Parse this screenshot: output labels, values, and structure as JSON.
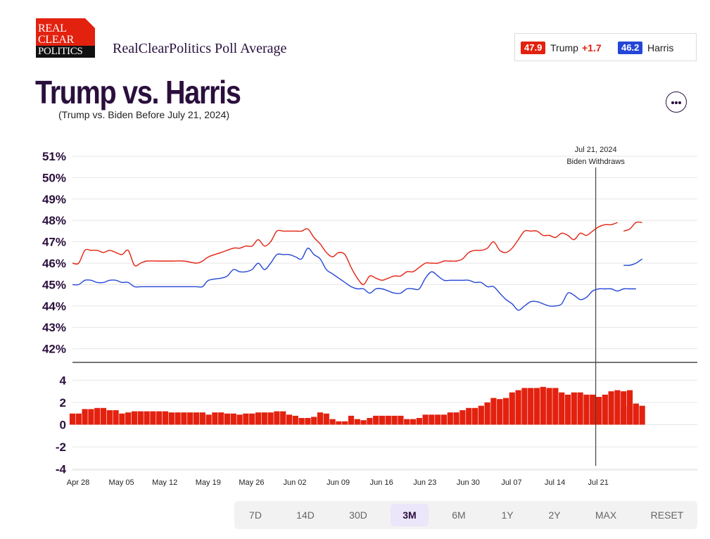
{
  "header": {
    "logo_line1": "REAL",
    "logo_line2": "CLEAR",
    "logo_line3": "POLITICS",
    "brand": "RealClearPolitics Poll Average",
    "trump_value": "47.9",
    "trump_label": "Trump",
    "trump_delta": "+1.7",
    "harris_value": "46.2",
    "harris_label": "Harris",
    "title": "Trump vs. Harris",
    "subtitle": "(Trump vs. Biden Before July 21, 2024)"
  },
  "tabs": [
    {
      "label": "7D",
      "active": false
    },
    {
      "label": "14D",
      "active": false
    },
    {
      "label": "30D",
      "active": false
    },
    {
      "label": "3M",
      "active": true
    },
    {
      "label": "6M",
      "active": false
    },
    {
      "label": "1Y",
      "active": false
    },
    {
      "label": "2Y",
      "active": false
    },
    {
      "label": "MAX",
      "active": false
    },
    {
      "label": "RESET",
      "active": false
    }
  ],
  "colors": {
    "trump": "#e3210f",
    "harris": "#2446d6",
    "spread": "#e3210f",
    "text": "#2a0f3d",
    "grid": "#e6e6e6"
  },
  "chart_data": [
    {
      "type": "line",
      "ylim": [
        41.5,
        51.3
      ],
      "yticks": [
        42,
        43,
        44,
        45,
        46,
        47,
        48,
        49,
        50,
        51
      ],
      "ytick_labels": [
        "42%",
        "43%",
        "44%",
        "45%",
        "46%",
        "47%",
        "48%",
        "49%",
        "50%",
        "51%"
      ],
      "x_start": "2024-04-28",
      "xticks": [
        "Apr 28",
        "May 05",
        "May 12",
        "May 19",
        "May 26",
        "Jun 02",
        "Jun 09",
        "Jun 16",
        "Jun 23",
        "Jun 30",
        "Jul 07",
        "Jul 14",
        "Jul 21"
      ],
      "annotation": {
        "day": 84.5,
        "line1": "Jul 21, 2024",
        "line2": "Biden Withdraws"
      },
      "series": [
        {
          "name": "Trump",
          "color": "#e3210f",
          "points": [
            [
              0,
              46
            ],
            [
              1,
              46
            ],
            [
              2,
              46.6
            ],
            [
              3,
              46.6
            ],
            [
              4,
              46.6
            ],
            [
              5,
              46.5
            ],
            [
              6,
              46.6
            ],
            [
              7,
              46.5
            ],
            [
              8,
              46.4
            ],
            [
              9,
              46.6
            ],
            [
              10,
              45.9
            ],
            [
              11,
              46
            ],
            [
              12,
              46.1
            ],
            [
              14,
              46.1
            ],
            [
              16,
              46.1
            ],
            [
              18,
              46.1
            ],
            [
              20,
              46
            ],
            [
              21,
              46.1
            ],
            [
              22,
              46.3
            ],
            [
              24,
              46.5
            ],
            [
              26,
              46.7
            ],
            [
              27,
              46.7
            ],
            [
              28,
              46.8
            ],
            [
              29,
              46.8
            ],
            [
              30,
              47.1
            ],
            [
              31,
              46.8
            ],
            [
              32,
              47
            ],
            [
              33,
              47.5
            ],
            [
              34,
              47.5
            ],
            [
              35,
              47.5
            ],
            [
              36,
              47.5
            ],
            [
              37,
              47.5
            ],
            [
              38,
              47.6
            ],
            [
              39,
              47.2
            ],
            [
              40,
              46.9
            ],
            [
              41,
              46.5
            ],
            [
              42,
              46.3
            ],
            [
              43,
              46.5
            ],
            [
              44,
              46.4
            ],
            [
              45,
              45.8
            ],
            [
              46,
              45.3
            ],
            [
              47,
              45
            ],
            [
              48,
              45.4
            ],
            [
              49,
              45.3
            ],
            [
              50,
              45.2
            ],
            [
              51,
              45.3
            ],
            [
              52,
              45.4
            ],
            [
              53,
              45.4
            ],
            [
              54,
              45.6
            ],
            [
              55,
              45.6
            ],
            [
              56,
              45.8
            ],
            [
              57,
              46
            ],
            [
              58,
              46
            ],
            [
              59,
              46
            ],
            [
              60,
              46.1
            ],
            [
              61,
              46.1
            ],
            [
              62,
              46.1
            ],
            [
              63,
              46.2
            ],
            [
              64,
              46.5
            ],
            [
              65,
              46.6
            ],
            [
              66,
              46.6
            ],
            [
              67,
              46.7
            ],
            [
              68,
              47
            ],
            [
              69,
              46.6
            ],
            [
              70,
              46.5
            ],
            [
              71,
              46.7
            ],
            [
              72,
              47.1
            ],
            [
              73,
              47.5
            ],
            [
              74,
              47.5
            ],
            [
              75,
              47.5
            ],
            [
              76,
              47.3
            ],
            [
              77,
              47.3
            ],
            [
              78,
              47.2
            ],
            [
              79,
              47.4
            ],
            [
              80,
              47.3
            ],
            [
              81,
              47.1
            ],
            [
              82,
              47.4
            ],
            [
              83,
              47.3
            ],
            [
              84,
              47.5
            ],
            [
              85,
              47.7
            ],
            [
              86,
              47.8
            ],
            [
              87,
              47.8
            ],
            [
              88,
              47.9
            ]
          ]
        },
        {
          "name": "Trump",
          "color": "#e3210f",
          "points": [
            [
              89,
              47.5
            ],
            [
              90,
              47.6
            ],
            [
              91,
              47.9
            ],
            [
              92,
              47.9
            ]
          ]
        },
        {
          "name": "Harris",
          "color": "#2446d6",
          "points": [
            [
              0,
              45
            ],
            [
              1,
              45
            ],
            [
              2,
              45.2
            ],
            [
              3,
              45.2
            ],
            [
              4,
              45.1
            ],
            [
              5,
              45.1
            ],
            [
              6,
              45.2
            ],
            [
              7,
              45.2
            ],
            [
              8,
              45.1
            ],
            [
              9,
              45.1
            ],
            [
              10,
              44.9
            ],
            [
              11,
              44.9
            ],
            [
              12,
              44.9
            ],
            [
              14,
              44.9
            ],
            [
              16,
              44.9
            ],
            [
              18,
              44.9
            ],
            [
              20,
              44.9
            ],
            [
              21,
              44.9
            ],
            [
              22,
              45.2
            ],
            [
              24,
              45.3
            ],
            [
              25,
              45.4
            ],
            [
              26,
              45.7
            ],
            [
              27,
              45.6
            ],
            [
              28,
              45.6
            ],
            [
              29,
              45.7
            ],
            [
              30,
              46
            ],
            [
              31,
              45.7
            ],
            [
              32,
              46
            ],
            [
              33,
              46.4
            ],
            [
              34,
              46.4
            ],
            [
              35,
              46.4
            ],
            [
              36,
              46.3
            ],
            [
              37,
              46.2
            ],
            [
              38,
              46.7
            ],
            [
              39,
              46.4
            ],
            [
              40,
              46.2
            ],
            [
              41,
              45.7
            ],
            [
              42,
              45.5
            ],
            [
              43,
              45.3
            ],
            [
              44,
              45.1
            ],
            [
              45,
              44.9
            ],
            [
              46,
              44.8
            ],
            [
              47,
              44.8
            ],
            [
              48,
              44.6
            ],
            [
              49,
              44.8
            ],
            [
              50,
              44.8
            ],
            [
              51,
              44.7
            ],
            [
              52,
              44.6
            ],
            [
              53,
              44.6
            ],
            [
              54,
              44.8
            ],
            [
              55,
              44.8
            ],
            [
              56,
              44.8
            ],
            [
              57,
              45.3
            ],
            [
              58,
              45.6
            ],
            [
              59,
              45.4
            ],
            [
              60,
              45.2
            ],
            [
              61,
              45.2
            ],
            [
              62,
              45.2
            ],
            [
              63,
              45.2
            ],
            [
              64,
              45.2
            ],
            [
              65,
              45.1
            ],
            [
              66,
              45.1
            ],
            [
              67,
              44.9
            ],
            [
              68,
              44.9
            ],
            [
              69,
              44.6
            ],
            [
              70,
              44.3
            ],
            [
              71,
              44.1
            ],
            [
              72,
              43.8
            ],
            [
              73,
              44
            ],
            [
              74,
              44.2
            ],
            [
              75,
              44.2
            ],
            [
              76,
              44.1
            ],
            [
              77,
              44
            ],
            [
              78,
              44
            ],
            [
              79,
              44.1
            ],
            [
              80,
              44.6
            ],
            [
              81,
              44.5
            ],
            [
              82,
              44.3
            ],
            [
              83,
              44.4
            ],
            [
              84,
              44.7
            ],
            [
              85,
              44.8
            ],
            [
              86,
              44.8
            ],
            [
              87,
              44.8
            ],
            [
              88,
              44.7
            ],
            [
              89,
              44.8
            ],
            [
              90,
              44.8
            ],
            [
              91,
              44.8
            ]
          ]
        },
        {
          "name": "Harris",
          "color": "#2446d6",
          "points": [
            [
              89,
              45.9
            ],
            [
              90,
              45.9
            ],
            [
              91,
              46
            ],
            [
              92,
              46.2
            ]
          ]
        }
      ]
    },
    {
      "type": "bar",
      "ylim": [
        -4.2,
        4.4
      ],
      "yticks": [
        4,
        2,
        0,
        -2,
        -4
      ],
      "ytick_labels": [
        "4",
        "2",
        "0",
        "-2",
        "-4"
      ],
      "x_start": "2024-04-28",
      "start_day": 0,
      "values": [
        1,
        1,
        1.4,
        1.4,
        1.5,
        1.5,
        1.3,
        1.3,
        1,
        1.1,
        1.2,
        1.2,
        1.2,
        1.2,
        1.2,
        1.2,
        1.1,
        1.1,
        1.1,
        1.1,
        1.1,
        1.1,
        0.9,
        1.1,
        1.1,
        1,
        1,
        0.9,
        1,
        1,
        1.1,
        1.1,
        1.1,
        1.2,
        1.2,
        0.9,
        0.8,
        0.6,
        0.6,
        0.7,
        1.1,
        1,
        0.5,
        0.3,
        0.3,
        0.8,
        0.5,
        0.4,
        0.6,
        0.8,
        0.8,
        0.8,
        0.8,
        0.8,
        0.5,
        0.5,
        0.6,
        0.9,
        0.9,
        0.9,
        0.9,
        1.1,
        1.1,
        1.3,
        1.5,
        1.5,
        1.7,
        2,
        2.4,
        2.3,
        2.4,
        2.9,
        3.1,
        3.3,
        3.3,
        3.3,
        3.4,
        3.3,
        3.3,
        2.9,
        2.7,
        2.9,
        2.9,
        2.7,
        2.7,
        2.5,
        2.7,
        3,
        3.1,
        3,
        3.1
      ],
      "values2_start_day": 89,
      "values2": [
        1.6,
        1.7,
        1.9,
        1.7
      ]
    }
  ]
}
